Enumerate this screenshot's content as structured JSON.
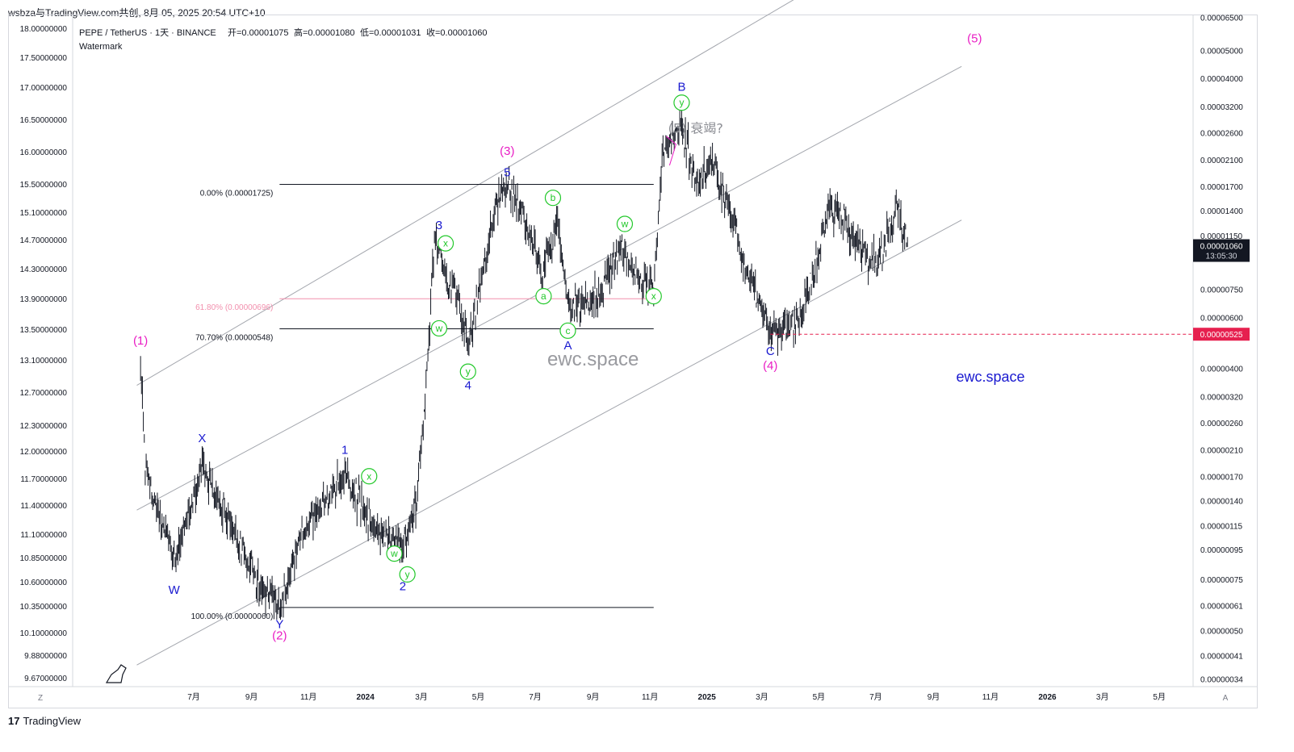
{
  "header": {
    "publisher_line": "wsbza与TradingView.com共创, 8月 05, 2025 20:54 UTC+10",
    "symbol_line": "PEPE / TetherUS · 1天 · BINANCE",
    "open_label": "开=0.00001075",
    "high_label": "高=0.00001080",
    "low_label": "低=0.00001031",
    "close_label": "收=0.00001060",
    "watermark_label": "Watermark"
  },
  "footer": {
    "brand": "TradingView",
    "brand_icon": "tradingview-logo-icon"
  },
  "colors": {
    "candle": "#131722",
    "wave_major": "#e91ec4",
    "wave_minor": "#1a1ad0",
    "wave_sub": "#22c82a",
    "channel": "#a3a6ad",
    "fib": "#131722",
    "fib_pink": "#f28fad",
    "price_tag": "#131722",
    "dashed": "#e6204f",
    "dashed_tag": "#e6204f",
    "watermark": "#9a9ba0",
    "brand_blue": "#1a1ad0"
  },
  "chart_data": {
    "type": "candlestick",
    "title": "PEPE / TetherUS · 1天 · BINANCE",
    "scale": "log",
    "xlabel": "",
    "ylabel": "",
    "grid": false,
    "left_axis_ticks": [
      "18.00000000",
      "17.50000000",
      "17.00000000",
      "16.50000000",
      "16.00000000",
      "15.50000000",
      "15.10000000",
      "14.70000000",
      "14.30000000",
      "13.90000000",
      "13.50000000",
      "13.10000000",
      "12.70000000",
      "12.30000000",
      "12.00000000",
      "11.70000000",
      "11.40000000",
      "11.10000000",
      "10.85000000",
      "10.60000000",
      "10.35000000",
      "10.10000000",
      "9.88000000",
      "9.67000000"
    ],
    "right_axis_ticks": [
      "0.00006500",
      "0.00005000",
      "0.00004000",
      "0.00003200",
      "0.00002600",
      "0.00002100",
      "0.00001700",
      "0.00001400",
      "0.00001150",
      "0.00000750",
      "0.00000600",
      "0.00000400",
      "0.00000320",
      "0.00000260",
      "0.00000210",
      "0.00000170",
      "0.00000140",
      "0.00000115",
      "0.00000095",
      "0.00000075",
      "0.00000061",
      "0.00000050",
      "0.00000041",
      "0.00000034"
    ],
    "x_ticks": [
      "7月",
      "9月",
      "11月",
      "2024",
      "3月",
      "5月",
      "7月",
      "9月",
      "11月",
      "2025",
      "3月",
      "5月",
      "7月",
      "9月",
      "11月",
      "2026",
      "3月",
      "5月"
    ],
    "y_range": [
      3.2e-07,
      6.6e-05
    ],
    "last_price": {
      "value": "0.00001060",
      "countdown": "13:05:30"
    },
    "dashed_level": {
      "value": 5.25e-06,
      "label": "0.00000525"
    },
    "fib_levels": [
      {
        "label": "0.00% (0.00001725)",
        "price": 1.725e-05
      },
      {
        "label": "61.80% (0.00000696)",
        "price": 6.96e-06
      },
      {
        "label": "70.70% (0.00000548)",
        "price": 5.48e-06
      },
      {
        "label": "100.00% (0.00000060)",
        "price": 6e-07
      }
    ],
    "pivots": [
      [
        "2023-05-05",
        4.3e-06
      ],
      [
        "2023-05-10",
        1.8e-06
      ],
      [
        "2023-06-10",
        8.5e-07
      ],
      [
        "2023-07-10",
        1.8e-06
      ],
      [
        "2023-09-12",
        6.9e-07
      ],
      [
        "2023-10-01",
        6e-07
      ],
      [
        "2023-10-25",
        1.1e-06
      ],
      [
        "2023-12-10",
        1.7e-06
      ],
      [
        "2024-01-05",
        1.2e-06
      ],
      [
        "2024-02-10",
        9.5e-07
      ],
      [
        "2024-02-25",
        1.4e-06
      ],
      [
        "2024-03-05",
        3.2e-06
      ],
      [
        "2024-03-15",
        1.12e-05
      ],
      [
        "2024-04-05",
        7.5e-06
      ],
      [
        "2024-04-20",
        4.8e-06
      ],
      [
        "2024-05-20",
        1.5e-05
      ],
      [
        "2024-06-01",
        1.725e-05
      ],
      [
        "2024-06-20",
        1.3e-05
      ],
      [
        "2024-07-08",
        8.5e-06
      ],
      [
        "2024-07-25",
        1.3e-05
      ],
      [
        "2024-08-05",
        6.5e-06
      ],
      [
        "2024-09-05",
        7e-06
      ],
      [
        "2024-09-30",
        1.05e-05
      ],
      [
        "2024-10-15",
        8.5e-06
      ],
      [
        "2024-11-05",
        7.5e-06
      ],
      [
        "2024-11-15",
        2.2e-05
      ],
      [
        "2024-12-05",
        2.79e-05
      ],
      [
        "2024-12-20",
        1.75e-05
      ],
      [
        "2025-01-05",
        2.05e-05
      ],
      [
        "2025-01-25",
        1.45e-05
      ],
      [
        "2025-02-08",
        9.5e-06
      ],
      [
        "2025-02-28",
        6.5e-06
      ],
      [
        "2025-03-10",
        5.5e-06
      ],
      [
        "2025-04-08",
        5.6e-06
      ],
      [
        "2025-04-25",
        8.5e-06
      ],
      [
        "2025-05-12",
        1.45e-05
      ],
      [
        "2025-05-28",
        1.3e-05
      ],
      [
        "2025-06-20",
        9.5e-06
      ],
      [
        "2025-07-05",
        9.5e-06
      ],
      [
        "2025-07-22",
        1.43e-05
      ],
      [
        "2025-08-05",
        1.06e-05
      ]
    ],
    "channel_lines": [
      {
        "from": [
          "2023-05-01",
          3.5e-06
        ],
        "to": [
          "2025-05-01",
          8.4e-05
        ]
      },
      {
        "from": [
          "2023-05-01",
          1.3e-06
        ],
        "to": [
          "2025-10-01",
          4.4e-05
        ]
      },
      {
        "from": [
          "2023-05-01",
          3.8e-07
        ],
        "to": [
          "2025-10-01",
          1.3e-05
        ]
      }
    ],
    "fib_segment": {
      "from": "2023-10-01",
      "to": "2024-11-05"
    },
    "dashed_segment_from": "2025-03-10",
    "wave_labels": [
      {
        "text": "(1)",
        "date": "2023-05-05",
        "price": 5e-06,
        "level": "major"
      },
      {
        "text": "(2)",
        "date": "2023-10-01",
        "price": 4.8e-07,
        "level": "major"
      },
      {
        "text": "(3)",
        "date": "2024-06-01",
        "price": 2.25e-05,
        "level": "major"
      },
      {
        "text": "(4)",
        "date": "2025-03-10",
        "price": 4.1e-06,
        "level": "major"
      },
      {
        "text": "(5)",
        "date": "2025-10-15",
        "price": 5.5e-05,
        "level": "major"
      },
      {
        "text": "W",
        "date": "2023-06-10",
        "price": 6.9e-07,
        "level": "minor"
      },
      {
        "text": "X",
        "date": "2023-07-10",
        "price": 2.3e-06,
        "level": "minor"
      },
      {
        "text": "Y",
        "date": "2023-10-01",
        "price": 5.25e-07,
        "level": "minor"
      },
      {
        "text": "1",
        "date": "2023-12-10",
        "price": 2.1e-06,
        "level": "minor"
      },
      {
        "text": "2",
        "date": "2024-02-10",
        "price": 7.1e-07,
        "level": "minor"
      },
      {
        "text": "3",
        "date": "2024-03-20",
        "price": 1.25e-05,
        "level": "minor"
      },
      {
        "text": "4",
        "date": "2024-04-20",
        "price": 3.5e-06,
        "level": "minor"
      },
      {
        "text": "5",
        "date": "2024-06-01",
        "price": 1.9e-05,
        "level": "minor"
      },
      {
        "text": "A",
        "date": "2024-08-05",
        "price": 4.8e-06,
        "level": "minor"
      },
      {
        "text": "B",
        "date": "2024-12-05",
        "price": 3.75e-05,
        "level": "minor"
      },
      {
        "text": "C",
        "date": "2025-03-10",
        "price": 4.6e-06,
        "level": "minor"
      },
      {
        "text": "w",
        "date": "2024-02-01",
        "price": 9.2e-07,
        "level": "sub"
      },
      {
        "text": "x",
        "date": "2024-01-05",
        "price": 1.7e-06,
        "level": "sub"
      },
      {
        "text": "y",
        "date": "2024-02-15",
        "price": 7.8e-07,
        "level": "sub"
      },
      {
        "text": "w",
        "date": "2024-03-20",
        "price": 5.5e-06,
        "level": "sub"
      },
      {
        "text": "x",
        "date": "2024-03-27",
        "price": 1.08e-05,
        "level": "sub"
      },
      {
        "text": "y",
        "date": "2024-04-20",
        "price": 3.9e-06,
        "level": "sub"
      },
      {
        "text": "a",
        "date": "2024-07-10",
        "price": 7.1e-06,
        "level": "sub"
      },
      {
        "text": "b",
        "date": "2024-07-20",
        "price": 1.55e-05,
        "level": "sub"
      },
      {
        "text": "c",
        "date": "2024-08-05",
        "price": 5.4e-06,
        "level": "sub"
      },
      {
        "text": "w",
        "date": "2024-10-05",
        "price": 1.26e-05,
        "level": "sub"
      },
      {
        "text": "x",
        "date": "2024-11-05",
        "price": 7.1e-06,
        "level": "sub"
      },
      {
        "text": "y",
        "date": "2024-12-05",
        "price": 3.3e-05,
        "level": "sub"
      }
    ],
    "annotation": {
      "text": "(5) 衰竭?",
      "date": "2024-12-20",
      "price": 2.6e-05
    },
    "watermarks": [
      {
        "text": "ewc.space",
        "date": "2024-09-01",
        "price": 4.1e-06,
        "style": "center"
      },
      {
        "text": "ewc.space",
        "date": "2025-11-01",
        "price": 3.6e-06,
        "style": "brand"
      }
    ]
  },
  "axis_buttons": {
    "left": "Z",
    "right": "A"
  },
  "logo_icon": "dinosaur-logo-icon"
}
